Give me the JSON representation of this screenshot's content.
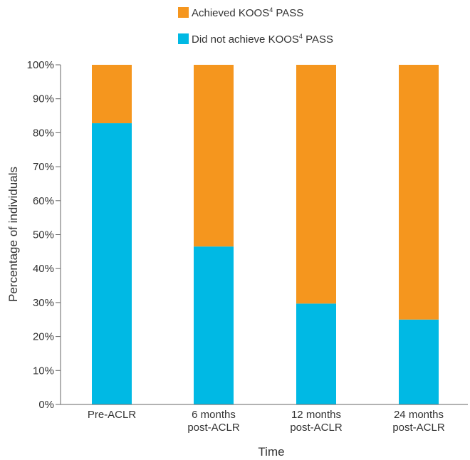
{
  "chart_data": {
    "type": "bar",
    "stacked": true,
    "categories": [
      [
        "Pre-ACLR"
      ],
      [
        "6 months",
        "post-ACLR"
      ],
      [
        "12 months",
        "post-ACLR"
      ],
      [
        "24 months",
        "post-ACLR"
      ]
    ],
    "series": [
      {
        "name": "Did not achieve KOOS4 PASS",
        "values": [
          82.8,
          46.5,
          29.7,
          25.0
        ],
        "color": "#00b9e4"
      },
      {
        "name": "Achieved KOOS4 PASS",
        "values": [
          17.2,
          53.5,
          70.3,
          75.0
        ],
        "color": "#f5961e"
      }
    ],
    "legend": [
      {
        "pre": "Achieved KOOS",
        "sup": "4",
        "post": " PASS",
        "color": "#f5961e"
      },
      {
        "pre": "Did not achieve KOOS",
        "sup": "4",
        "post": " PASS",
        "color": "#00b9e4"
      }
    ],
    "legend_position": "top",
    "xlabel": "Time",
    "ylabel": "Percentage of individuals",
    "ylim": [
      0,
      100
    ],
    "yticks": [
      "0%",
      "10%",
      "20%",
      "30%",
      "40%",
      "50%",
      "60%",
      "70%",
      "80%",
      "90%",
      "100%"
    ],
    "grid": false
  }
}
